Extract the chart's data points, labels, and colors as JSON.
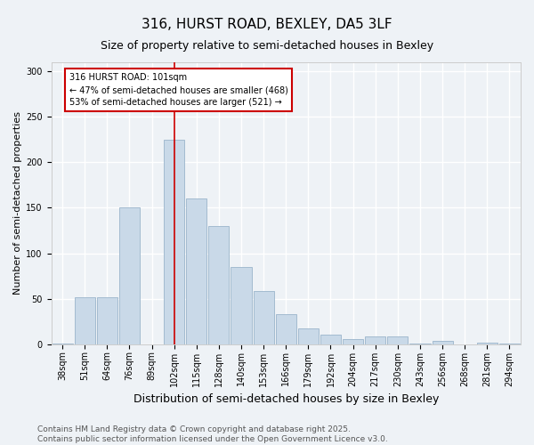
{
  "title": "316, HURST ROAD, BEXLEY, DA5 3LF",
  "subtitle": "Size of property relative to semi-detached houses in Bexley",
  "xlabel": "Distribution of semi-detached houses by size in Bexley",
  "ylabel": "Number of semi-detached properties",
  "categories": [
    "38sqm",
    "51sqm",
    "64sqm",
    "76sqm",
    "89sqm",
    "102sqm",
    "115sqm",
    "128sqm",
    "140sqm",
    "153sqm",
    "166sqm",
    "179sqm",
    "192sqm",
    "204sqm",
    "217sqm",
    "230sqm",
    "243sqm",
    "256sqm",
    "268sqm",
    "281sqm",
    "294sqm"
  ],
  "values": [
    1,
    52,
    52,
    150,
    0,
    225,
    160,
    130,
    85,
    58,
    33,
    17,
    10,
    6,
    8,
    8,
    1,
    4,
    0,
    2,
    1
  ],
  "bar_color": "#c9d9e8",
  "bar_edge_color": "#9ab4cb",
  "vline_x_index": 5,
  "vline_color": "#cc0000",
  "annotation_text": "316 HURST ROAD: 101sqm\n← 47% of semi-detached houses are smaller (468)\n53% of semi-detached houses are larger (521) →",
  "annotation_box_color": "#ffffff",
  "annotation_box_edge_color": "#cc0000",
  "ylim": [
    0,
    310
  ],
  "yticks": [
    0,
    50,
    100,
    150,
    200,
    250,
    300
  ],
  "footer_text": "Contains HM Land Registry data © Crown copyright and database right 2025.\nContains public sector information licensed under the Open Government Licence v3.0.",
  "bg_color": "#eef2f6",
  "plot_bg_color": "#eef2f6",
  "grid_color": "#ffffff",
  "title_fontsize": 11,
  "subtitle_fontsize": 9,
  "xlabel_fontsize": 9,
  "ylabel_fontsize": 8,
  "tick_fontsize": 7,
  "footer_fontsize": 6.5,
  "annot_fontsize": 7
}
